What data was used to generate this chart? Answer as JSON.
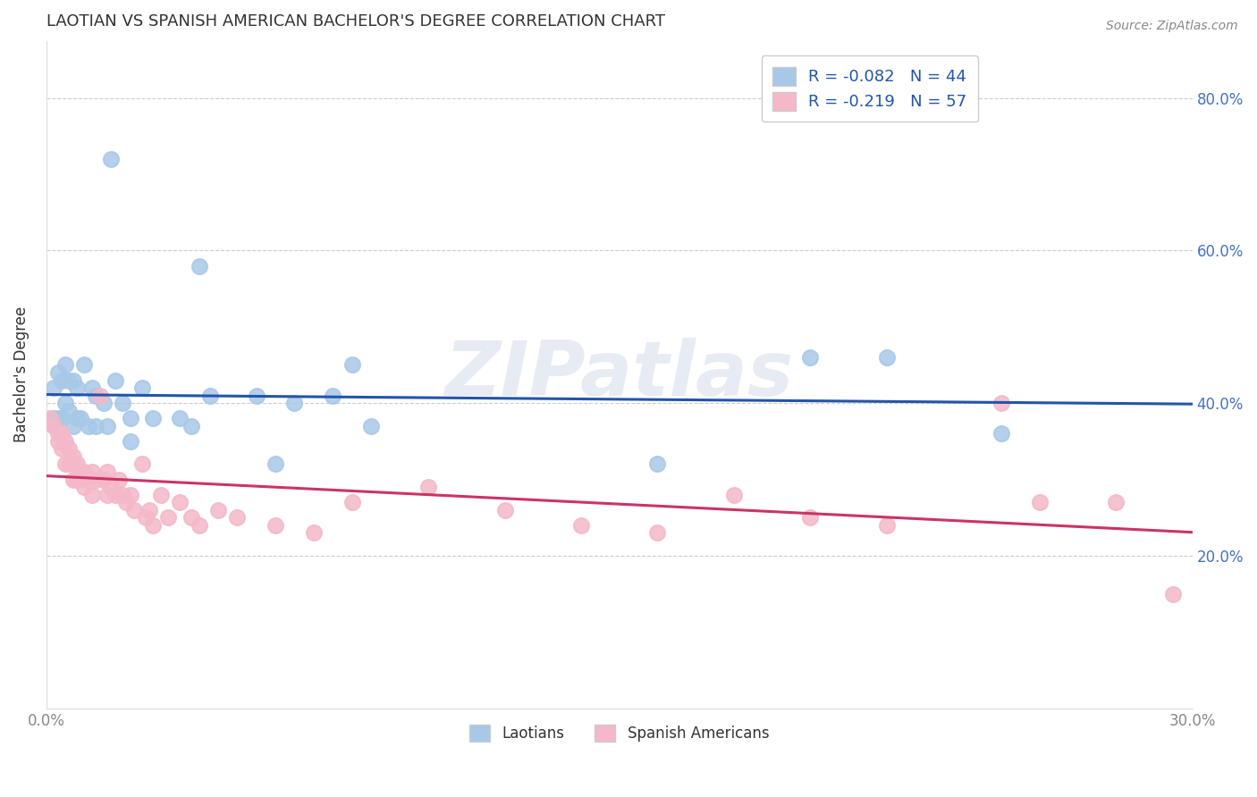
{
  "title": "LAOTIAN VS SPANISH AMERICAN BACHELOR'S DEGREE CORRELATION CHART",
  "source": "Source: ZipAtlas.com",
  "ylabel": "Bachelor's Degree",
  "xlim": [
    0.0,
    0.3
  ],
  "ylim": [
    0.0,
    0.875
  ],
  "xticks": [
    0.0,
    0.05,
    0.1,
    0.15,
    0.2,
    0.25,
    0.3
  ],
  "xtick_labels": [
    "0.0%",
    "",
    "",
    "",
    "",
    "",
    "30.0%"
  ],
  "yticks": [
    0.0,
    0.2,
    0.4,
    0.6,
    0.8
  ],
  "ytick_right_labels": [
    "",
    "20.0%",
    "40.0%",
    "60.0%",
    "80.0%"
  ],
  "laotian_color": "#a8c8e8",
  "spanish_color": "#f4b8c8",
  "laotian_line_color": "#2255aa",
  "spanish_line_color": "#cc3366",
  "legend_label_1": "Laotians",
  "legend_label_2": "Spanish Americans",
  "R1": -0.082,
  "N1": 44,
  "R2": -0.219,
  "N2": 57,
  "watermark": "ZIPatlas",
  "laotian_x": [
    0.001,
    0.002,
    0.002,
    0.003,
    0.003,
    0.004,
    0.004,
    0.005,
    0.005,
    0.006,
    0.006,
    0.007,
    0.007,
    0.008,
    0.008,
    0.009,
    0.01,
    0.011,
    0.012,
    0.013,
    0.013,
    0.015,
    0.016,
    0.017,
    0.018,
    0.02,
    0.022,
    0.022,
    0.025,
    0.028,
    0.035,
    0.038,
    0.04,
    0.043,
    0.055,
    0.06,
    0.065,
    0.075,
    0.08,
    0.085,
    0.16,
    0.2,
    0.22,
    0.25
  ],
  "laotian_y": [
    0.375,
    0.42,
    0.38,
    0.44,
    0.38,
    0.43,
    0.38,
    0.45,
    0.4,
    0.43,
    0.39,
    0.43,
    0.37,
    0.42,
    0.38,
    0.38,
    0.45,
    0.37,
    0.42,
    0.41,
    0.37,
    0.4,
    0.37,
    0.72,
    0.43,
    0.4,
    0.38,
    0.35,
    0.42,
    0.38,
    0.38,
    0.37,
    0.58,
    0.41,
    0.41,
    0.32,
    0.4,
    0.41,
    0.45,
    0.37,
    0.32,
    0.46,
    0.46,
    0.36
  ],
  "spanish_x": [
    0.001,
    0.002,
    0.003,
    0.003,
    0.004,
    0.004,
    0.005,
    0.005,
    0.006,
    0.006,
    0.007,
    0.007,
    0.008,
    0.008,
    0.009,
    0.01,
    0.01,
    0.011,
    0.012,
    0.012,
    0.013,
    0.014,
    0.015,
    0.016,
    0.016,
    0.017,
    0.018,
    0.019,
    0.02,
    0.021,
    0.022,
    0.023,
    0.025,
    0.026,
    0.027,
    0.028,
    0.03,
    0.032,
    0.035,
    0.038,
    0.04,
    0.045,
    0.05,
    0.06,
    0.07,
    0.08,
    0.1,
    0.12,
    0.14,
    0.16,
    0.18,
    0.2,
    0.22,
    0.25,
    0.26,
    0.28,
    0.295
  ],
  "spanish_y": [
    0.38,
    0.37,
    0.36,
    0.35,
    0.36,
    0.34,
    0.35,
    0.32,
    0.34,
    0.32,
    0.33,
    0.3,
    0.32,
    0.3,
    0.31,
    0.31,
    0.29,
    0.3,
    0.31,
    0.28,
    0.3,
    0.41,
    0.3,
    0.28,
    0.31,
    0.29,
    0.28,
    0.3,
    0.28,
    0.27,
    0.28,
    0.26,
    0.32,
    0.25,
    0.26,
    0.24,
    0.28,
    0.25,
    0.27,
    0.25,
    0.24,
    0.26,
    0.25,
    0.24,
    0.23,
    0.27,
    0.29,
    0.26,
    0.24,
    0.23,
    0.28,
    0.25,
    0.24,
    0.4,
    0.27,
    0.27,
    0.15
  ],
  "background_color": "#ffffff",
  "grid_color": "#cccccc",
  "title_color": "#333333",
  "axis_color": "#888888",
  "blue_legend_text_color": "#2255aa",
  "pink_legend_text_color": "#cc3366",
  "ytick_color": "#4472C4"
}
